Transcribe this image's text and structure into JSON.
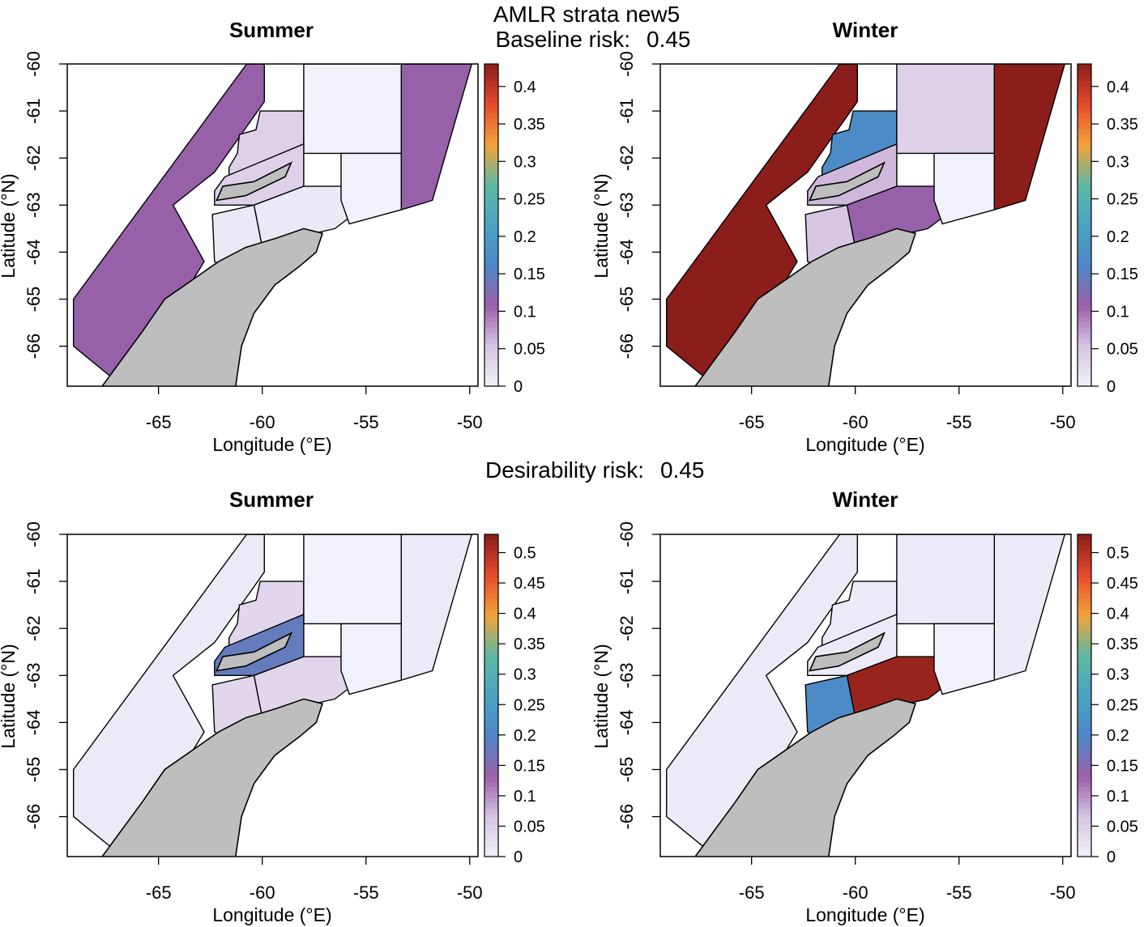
{
  "figure": {
    "title": "AMLR strata new5",
    "sections": [
      {
        "label": "Baseline risk:",
        "value": "0.45",
        "panels": [
          {
            "season": "Summer",
            "strata_values": {
              "outer_west": 0.11,
              "outer_east": 0.11,
              "north_central": 0.04,
              "north_east": 0.0,
              "inner_north": 0.04,
              "inner_south": 0.01,
              "south_inner": 0.01,
              "south_east": 0.0
            }
          },
          {
            "season": "Winter",
            "strata_values": {
              "outer_west": 0.45,
              "outer_east": 0.45,
              "north_central": 0.17,
              "north_east": 0.04,
              "inner_north": 0.06,
              "inner_south": 0.11,
              "south_inner": 0.05,
              "south_east": 0.0
            }
          }
        ],
        "colorbar": {
          "range": [
            0,
            0.43
          ],
          "ticks": [
            0,
            0.05,
            0.1,
            0.15,
            0.2,
            0.25,
            0.3,
            0.35,
            0.4
          ],
          "tick_labels": [
            "0",
            "0.05",
            "0.1",
            "0.15",
            "0.2",
            "0.25",
            "0.3",
            "0.35",
            "0.4"
          ]
        }
      },
      {
        "label": "Desirability risk:",
        "value": "0.45",
        "panels": [
          {
            "season": "Summer",
            "strata_values": {
              "outer_west": 0.01,
              "outer_east": 0.01,
              "north_central": 0.04,
              "north_east": 0.0,
              "inner_north": 0.18,
              "inner_south": 0.04,
              "south_inner": 0.04,
              "south_east": 0.0
            }
          },
          {
            "season": "Winter",
            "strata_values": {
              "outer_west": 0.01,
              "outer_east": 0.01,
              "north_central": 0.01,
              "north_east": 0.01,
              "inner_north": 0.01,
              "inner_south": 0.52,
              "south_inner": 0.21,
              "south_east": 0.0
            }
          }
        ],
        "colorbar": {
          "range": [
            0,
            0.53
          ],
          "ticks": [
            0,
            0.05,
            0.1,
            0.15,
            0.2,
            0.25,
            0.3,
            0.35,
            0.4,
            0.45,
            0.5
          ],
          "tick_labels": [
            "0",
            "0.05",
            "0.1",
            "0.15",
            "0.2",
            "0.25",
            "0.3",
            "0.35",
            "0.4",
            "0.45",
            "0.5"
          ]
        }
      }
    ],
    "axes": {
      "xlabel": "Longitude (°E)",
      "ylabel": "Latitude (°N)",
      "x_range": [
        -69.4,
        -49.6
      ],
      "y_range": [
        -66.85,
        -60.0
      ],
      "x_ticks": [
        -65,
        -60,
        -55,
        -50
      ],
      "x_tick_labels": [
        "-65",
        "-60",
        "-55",
        "-50"
      ],
      "y_ticks": [
        -60,
        -61,
        -62,
        -63,
        -64,
        -65,
        -66
      ],
      "y_tick_labels": [
        "-60",
        "-61",
        "-62",
        "-63",
        "-64",
        "-65",
        "-66"
      ]
    },
    "colors": {
      "land": "#bebebe",
      "palette": [
        "#f1f1fb",
        "#d6c4e2",
        "#9b5fa9",
        "#4e86c6",
        "#4aa3c4",
        "#5fb8a3",
        "#f2a33a",
        "#e64a2e",
        "#8b1d1b"
      ]
    }
  }
}
